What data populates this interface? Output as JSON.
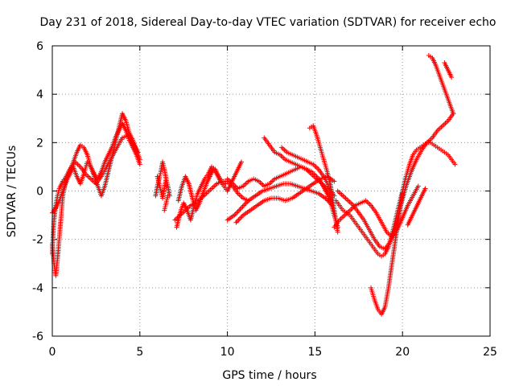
{
  "chart_data": {
    "type": "scatter",
    "title": "Day 231 of 2018, Sidereal Day-to-day VTEC variation (SDTVAR) for receiver echo",
    "xlabel": "GPS time / hours",
    "ylabel": "SDTVAR / TECUs",
    "xlim": [
      0,
      25
    ],
    "ylim": [
      -6,
      6
    ],
    "x_ticks": [
      "0",
      "5",
      "10",
      "15",
      "20",
      "25"
    ],
    "y_ticks": [
      "-6",
      "-4",
      "-2",
      "0",
      "2",
      "4",
      "6"
    ],
    "grid": true,
    "marker": "plus",
    "color": "#ff0000",
    "series": [
      {
        "x": [
          0.0,
          0.1,
          0.2,
          0.3,
          0.45,
          0.6,
          0.8,
          1.0,
          1.2,
          1.4,
          1.6,
          1.8,
          2.0,
          2.2,
          2.4,
          2.6,
          2.8,
          3.0,
          3.2,
          3.4,
          3.6,
          3.8,
          4.0,
          4.2,
          4.4,
          4.6,
          4.8,
          5.0
        ],
        "y": [
          -2.2,
          -3.0,
          -3.5,
          -2.8,
          -1.5,
          -0.2,
          0.5,
          0.8,
          1.2,
          1.6,
          1.9,
          1.8,
          1.5,
          1.0,
          0.6,
          0.2,
          -0.2,
          0.2,
          0.8,
          1.4,
          2.0,
          2.6,
          3.2,
          2.9,
          2.4,
          2.1,
          1.7,
          1.3
        ]
      },
      {
        "x": [
          0.0,
          0.2,
          0.4,
          0.6,
          0.8,
          1.0,
          1.2,
          1.4,
          1.6,
          1.8,
          2.0,
          2.2,
          2.4,
          2.6,
          2.8,
          3.0,
          3.2,
          3.4,
          3.6,
          3.8,
          4.0,
          4.2,
          4.4,
          4.6,
          4.8,
          5.0
        ],
        "y": [
          -0.9,
          -0.7,
          -0.4,
          0.0,
          0.4,
          0.7,
          1.0,
          0.6,
          0.3,
          0.7,
          1.2,
          1.0,
          0.7,
          0.5,
          0.8,
          1.2,
          1.5,
          1.8,
          2.2,
          2.5,
          2.8,
          2.5,
          2.1,
          1.8,
          1.5,
          1.1
        ]
      },
      {
        "x": [
          0.0,
          0.05,
          0.1,
          0.2,
          0.3,
          0.4,
          0.6,
          0.8,
          1.0,
          1.3,
          1.6,
          1.9,
          2.2,
          2.5,
          2.8,
          3.1,
          3.4,
          3.7,
          4.0,
          4.3,
          4.6,
          4.9
        ],
        "y": [
          -2.6,
          -1.8,
          -1.2,
          -0.6,
          -0.2,
          0.1,
          0.4,
          0.6,
          0.9,
          1.2,
          1.0,
          0.7,
          0.5,
          0.3,
          0.6,
          1.0,
          1.4,
          1.8,
          2.2,
          2.3,
          2.0,
          1.6
        ]
      },
      {
        "x": [
          6.0,
          6.1,
          6.2,
          6.3,
          6.4,
          6.5,
          6.6,
          6.7
        ],
        "y": [
          0.6,
          0.3,
          0.0,
          -0.3,
          0.1,
          0.5,
          0.2,
          -0.2
        ]
      },
      {
        "x": [
          5.9,
          6.0,
          6.1,
          6.2,
          6.3,
          6.4,
          6.5
        ],
        "y": [
          -0.2,
          0.2,
          0.5,
          0.8,
          1.2,
          0.9,
          0.5
        ]
      },
      {
        "x": [
          6.4,
          6.5,
          6.6
        ],
        "y": [
          -0.8,
          -0.5,
          -0.2
        ]
      },
      {
        "x": [
          7.1,
          7.3,
          7.5,
          7.7,
          7.9,
          8.1,
          8.3,
          8.5,
          8.7,
          8.9,
          9.1,
          9.3,
          9.5,
          9.7,
          9.9
        ],
        "y": [
          -1.5,
          -0.9,
          -0.5,
          -0.8,
          -1.2,
          -0.6,
          -0.1,
          0.2,
          0.5,
          0.7,
          1.0,
          0.9,
          0.6,
          0.4,
          0.3
        ]
      },
      {
        "x": [
          7.2,
          7.4,
          7.6,
          7.8,
          8.0,
          8.2,
          8.4,
          8.6,
          8.8,
          9.0,
          9.2,
          9.4,
          9.6,
          9.8,
          10.0,
          10.2,
          10.4,
          10.6,
          10.8
        ],
        "y": [
          -0.4,
          0.2,
          0.6,
          0.3,
          -0.3,
          -0.8,
          -0.5,
          -0.1,
          0.3,
          0.6,
          0.9,
          0.7,
          0.4,
          0.2,
          0.0,
          0.3,
          0.6,
          0.9,
          1.2
        ]
      },
      {
        "x": [
          7.0,
          7.3,
          7.6,
          7.9,
          8.2,
          8.5,
          8.8,
          9.1,
          9.4,
          9.7,
          10.0,
          10.3,
          10.6,
          10.9,
          11.2
        ],
        "y": [
          -1.2,
          -1.0,
          -0.8,
          -0.6,
          -0.5,
          -0.3,
          -0.1,
          0.1,
          0.3,
          0.4,
          0.4,
          0.2,
          -0.1,
          -0.3,
          -0.4
        ]
      },
      {
        "x": [
          10.0,
          10.3,
          10.6,
          10.9,
          11.2,
          11.5,
          11.8,
          12.1,
          12.4,
          12.7,
          13.0,
          13.3,
          13.6,
          13.9,
          14.2,
          14.5,
          14.8,
          15.1,
          15.4,
          15.7,
          16.0
        ],
        "y": [
          0.5,
          0.3,
          0.1,
          0.2,
          0.4,
          0.5,
          0.4,
          0.2,
          0.3,
          0.5,
          0.6,
          0.7,
          0.8,
          0.9,
          1.0,
          0.9,
          0.7,
          0.5,
          0.3,
          0.1,
          -0.2
        ]
      },
      {
        "x": [
          10.0,
          10.4,
          10.8,
          11.2,
          11.6,
          12.0,
          12.4,
          12.8,
          13.2,
          13.6,
          14.0,
          14.4,
          14.8,
          15.2,
          15.6,
          16.0
        ],
        "y": [
          -1.2,
          -1.0,
          -0.7,
          -0.4,
          -0.2,
          0.0,
          0.1,
          0.2,
          0.3,
          0.3,
          0.2,
          0.1,
          0.0,
          -0.1,
          -0.3,
          -0.6
        ]
      },
      {
        "x": [
          10.5,
          10.9,
          11.3,
          11.7,
          12.1,
          12.5,
          12.9,
          13.3,
          13.7,
          14.1,
          14.5,
          14.9,
          15.3,
          15.7,
          16.1
        ],
        "y": [
          -1.3,
          -1.0,
          -0.8,
          -0.6,
          -0.4,
          -0.3,
          -0.3,
          -0.4,
          -0.3,
          -0.1,
          0.1,
          0.3,
          0.5,
          0.6,
          0.4
        ]
      },
      {
        "x": [
          12.1,
          12.4,
          12.7,
          13.0,
          13.3,
          13.6,
          13.9,
          14.2,
          14.5,
          14.8,
          15.1,
          15.4,
          15.7,
          16.0
        ],
        "y": [
          2.2,
          1.9,
          1.6,
          1.5,
          1.3,
          1.2,
          1.1,
          1.0,
          0.9,
          0.8,
          0.6,
          0.3,
          -0.1,
          -0.4
        ]
      },
      {
        "x": [
          13.1,
          13.4,
          13.7,
          14.0,
          14.3,
          14.6,
          14.9,
          15.2,
          15.5,
          15.8,
          16.1
        ],
        "y": [
          1.8,
          1.6,
          1.5,
          1.4,
          1.3,
          1.2,
          1.1,
          0.9,
          0.6,
          0.2,
          -0.2
        ]
      },
      {
        "x": [
          14.7,
          14.9,
          15.1,
          15.3,
          15.5,
          15.7,
          15.9,
          16.1,
          16.3
        ],
        "y": [
          2.6,
          2.7,
          2.3,
          1.8,
          1.3,
          0.8,
          0.2,
          -0.8,
          -1.7
        ]
      },
      {
        "x": [
          15.5,
          15.7,
          15.9,
          16.1,
          16.3
        ],
        "y": [
          0.2,
          -0.1,
          -0.5,
          -1.0,
          -1.5
        ]
      },
      {
        "x": [
          16.2,
          16.4,
          16.6,
          16.8,
          17.0,
          17.2,
          17.4,
          17.6,
          17.8,
          18.0,
          18.2,
          18.4,
          18.6,
          18.8,
          19.0,
          19.2,
          19.4,
          19.6,
          19.8,
          20.0,
          20.2,
          20.4,
          20.6,
          20.8,
          21.0,
          21.2,
          21.4,
          21.6,
          21.8,
          22.0,
          22.2,
          22.4,
          22.6,
          22.8,
          23.0
        ],
        "y": [
          -0.4,
          -0.6,
          -0.8,
          -0.9,
          -1.0,
          -1.2,
          -1.4,
          -1.6,
          -1.8,
          -2.0,
          -2.2,
          -2.4,
          -2.6,
          -2.7,
          -2.6,
          -2.3,
          -1.8,
          -1.2,
          -0.6,
          0.0,
          0.6,
          1.1,
          1.5,
          1.7,
          1.8,
          1.9,
          2.0,
          2.0,
          1.9,
          1.8,
          1.7,
          1.6,
          1.5,
          1.3,
          1.1
        ]
      },
      {
        "x": [
          16.3,
          16.6,
          16.9,
          17.2,
          17.5,
          17.8,
          18.1,
          18.4,
          18.7,
          19.0,
          19.3,
          19.6,
          19.9,
          20.2,
          20.5,
          20.8,
          21.1,
          21.4,
          21.7,
          22.0,
          22.3,
          22.6,
          22.9
        ],
        "y": [
          0.0,
          -0.2,
          -0.4,
          -0.6,
          -0.9,
          -1.2,
          -1.6,
          -2.0,
          -2.3,
          -2.4,
          -2.1,
          -1.5,
          -0.6,
          0.2,
          0.8,
          1.3,
          1.7,
          2.0,
          2.2,
          2.5,
          2.7,
          2.9,
          3.2
        ]
      },
      {
        "x": [
          16.1,
          16.4,
          16.7,
          17.0,
          17.3,
          17.6,
          17.9,
          18.2,
          18.5,
          18.8,
          19.1,
          19.4,
          19.7,
          20.0,
          20.3,
          20.6,
          20.9
        ],
        "y": [
          -1.5,
          -1.2,
          -1.0,
          -0.8,
          -0.6,
          -0.5,
          -0.4,
          -0.6,
          -0.9,
          -1.3,
          -1.7,
          -1.9,
          -1.6,
          -1.1,
          -0.6,
          -0.2,
          0.2
        ]
      },
      {
        "x": [
          18.2,
          18.4,
          18.6,
          18.8,
          19.0,
          19.2,
          19.4,
          19.6,
          19.8,
          20.0
        ],
        "y": [
          -4.0,
          -4.5,
          -4.9,
          -5.1,
          -4.8,
          -4.0,
          -3.0,
          -2.0,
          -1.0,
          -0.1
        ]
      },
      {
        "x": [
          21.5,
          21.7,
          21.9,
          22.1,
          22.3,
          22.5,
          22.7,
          22.9
        ],
        "y": [
          5.6,
          5.5,
          5.2,
          4.8,
          4.4,
          4.0,
          3.6,
          3.2
        ]
      },
      {
        "x": [
          22.4,
          22.6,
          22.8
        ],
        "y": [
          5.3,
          5.0,
          4.7
        ]
      },
      {
        "x": [
          20.3,
          20.5,
          20.7,
          20.9,
          21.1,
          21.3
        ],
        "y": [
          -1.4,
          -1.1,
          -0.8,
          -0.5,
          -0.2,
          0.1
        ]
      }
    ]
  }
}
